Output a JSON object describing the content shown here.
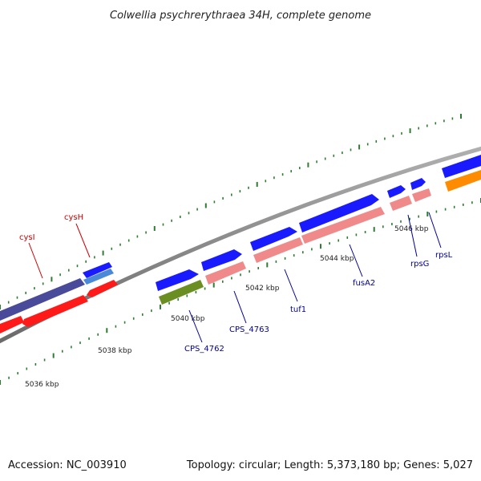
{
  "title": "Colwellia psychrerythraea 34H, complete genome",
  "footer": {
    "accession": "Accession: NC_003910",
    "summary": "Topology: circular; Length: 5,373,180 bp; Genes: 5,027"
  },
  "colors": {
    "backbone": "#8a8a8a",
    "tick": "#2e7d32",
    "forward_cds": "#1a1aff",
    "reverse_cds": "#ff1a1a",
    "reverse_rna": "#f08a8a",
    "rrna": "#ff8c00",
    "other": "#6b8e23",
    "overlap": "#4a4a9a",
    "label_red": "#cc0000",
    "label_blue": "#000099"
  },
  "kbp_labels": [
    "5036 kbp",
    "5038 kbp",
    "5040 kbp",
    "5042 kbp",
    "5044 kbp",
    "5046 kbp"
  ],
  "genes": [
    {
      "name": "cysI",
      "strand": "reverse",
      "color": "red"
    },
    {
      "name": "cysH",
      "strand": "reverse",
      "color": "red"
    },
    {
      "name": "CPS_4762",
      "strand": "forward",
      "color": "blue"
    },
    {
      "name": "CPS_4763",
      "strand": "forward",
      "color": "blue"
    },
    {
      "name": "tuf1",
      "strand": "forward",
      "color": "blue"
    },
    {
      "name": "fusA2",
      "strand": "forward",
      "color": "blue"
    },
    {
      "name": "rpsG",
      "strand": "forward",
      "color": "blue"
    },
    {
      "name": "rpsL",
      "strand": "forward",
      "color": "blue"
    }
  ]
}
